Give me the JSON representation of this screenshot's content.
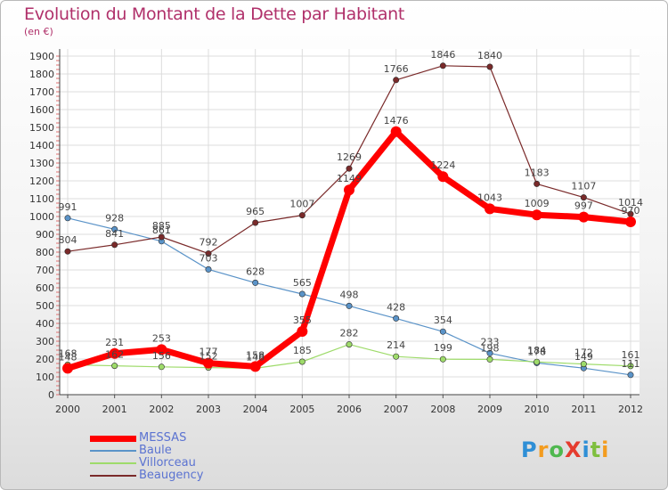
{
  "header": {
    "title": "Evolution du Montant de la Dette par Habitant",
    "subtitle": "(en €)"
  },
  "logo": {
    "text": "ProXiti",
    "colors": [
      "#2f8fd6",
      "#f39c1f",
      "#4fb84f",
      "#e53c2e",
      "#2f8fd6",
      "#7fbf3f",
      "#f39c1f"
    ]
  },
  "chart_data": {
    "type": "line",
    "title": "Evolution du Montant de la Dette par Habitant",
    "subtitle": "(en €)",
    "x": [
      "2000",
      "2001",
      "2002",
      "2003",
      "2004",
      "2005",
      "2006",
      "2007",
      "2008",
      "2009",
      "2010",
      "2011",
      "2012"
    ],
    "ylim": [
      0,
      1900
    ],
    "yticks": [
      0,
      100,
      200,
      300,
      400,
      500,
      600,
      700,
      800,
      900,
      1000,
      1100,
      1200,
      1300,
      1400,
      1500,
      1600,
      1700,
      1800,
      1900
    ],
    "legend_position": "bottom-left",
    "series": [
      {
        "name": "MESSAS",
        "color": "#ff0000",
        "emphasis": true,
        "values": [
          148,
          231,
          253,
          177,
          158,
          355,
          1149,
          1476,
          1224,
          1043,
          1009,
          997,
          970
        ]
      },
      {
        "name": "Baule",
        "color": "#5a93c8",
        "values": [
          991,
          928,
          861,
          703,
          628,
          565,
          498,
          428,
          354,
          233,
          178,
          149,
          111
        ]
      },
      {
        "name": "Villorceau",
        "color": "#9edb6a",
        "values": [
          168,
          162,
          156,
          152,
          148,
          185,
          282,
          214,
          199,
          198,
          184,
          172,
          161
        ]
      },
      {
        "name": "Beaugency",
        "color": "#7a2a2a",
        "values": [
          804,
          841,
          885,
          792,
          965,
          1007,
          1269,
          1766,
          1846,
          1840,
          1183,
          1107,
          1014
        ]
      }
    ]
  }
}
